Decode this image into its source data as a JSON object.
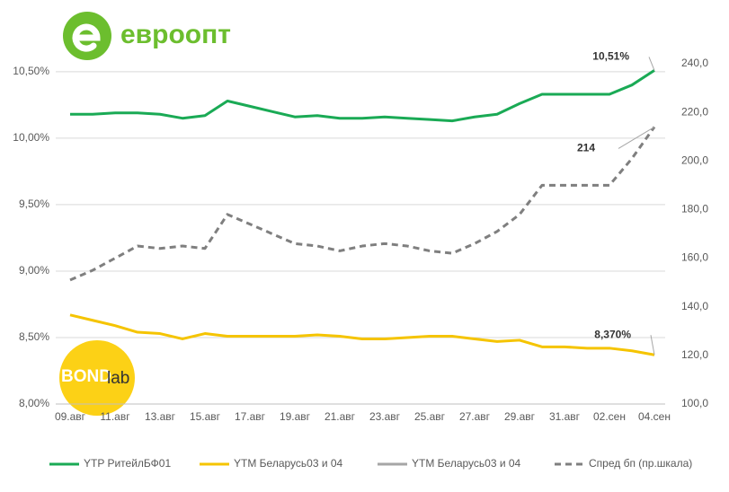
{
  "logos": {
    "brand": "евроопт",
    "watermark_bold": "BOND",
    "watermark_light": "lab"
  },
  "chart_data": {
    "type": "line",
    "categories": [
      "09.авг",
      null,
      "11.авг",
      null,
      "13.авг",
      null,
      "15.авг",
      null,
      "17.авг",
      null,
      "19.авг",
      null,
      "21.авг",
      null,
      "23.авг",
      null,
      "25.авг",
      null,
      "27.авг",
      null,
      "29.авг",
      null,
      "31.авг",
      null,
      "02.сен",
      null,
      "04.сен"
    ],
    "ylim": [
      8,
      10.56
    ],
    "yticks": [
      {
        "value": 8,
        "label": "8,00%"
      },
      {
        "value": 8.5,
        "label": "8,50%"
      },
      {
        "value": 9,
        "label": "9,00%"
      },
      {
        "value": 9.5,
        "label": "9,50%"
      },
      {
        "value": 10,
        "label": "10,00%"
      },
      {
        "value": 10.5,
        "label": "10,50%"
      }
    ],
    "y2lim": [
      100,
      240
    ],
    "y2ticks": [
      {
        "value": 100,
        "label": "100,0"
      },
      {
        "value": 120,
        "label": "120,0"
      },
      {
        "value": 140,
        "label": "140,0"
      },
      {
        "value": 160,
        "label": "160,0"
      },
      {
        "value": 180,
        "label": "180,0"
      },
      {
        "value": 200,
        "label": "200,0"
      },
      {
        "value": 220,
        "label": "220,0"
      },
      {
        "value": 240,
        "label": "240,0"
      }
    ],
    "grid": true,
    "legend": "bottom",
    "series": [
      {
        "name": "YTP РитейлБФ01",
        "color": "#1aaa55",
        "style": "solid",
        "values": [
          10.18,
          10.18,
          10.19,
          10.19,
          10.18,
          10.15,
          10.17,
          10.28,
          10.24,
          10.2,
          10.16,
          10.17,
          10.15,
          10.15,
          10.16,
          10.15,
          10.14,
          10.13,
          10.16,
          10.18,
          10.26,
          10.33,
          10.33,
          10.33,
          10.33,
          10.4,
          10.51
        ],
        "value_labels": [
          null,
          null,
          null,
          null,
          null,
          null,
          null,
          null,
          null,
          null,
          null,
          null,
          null,
          null,
          null,
          null,
          null,
          null,
          null,
          null,
          null,
          null,
          null,
          null,
          null,
          null,
          "10,51%"
        ]
      },
      {
        "name": "YTM Беларусь03 и 04",
        "color": "#f5c400",
        "style": "solid",
        "values": [
          8.67,
          8.63,
          8.59,
          8.54,
          8.53,
          8.49,
          8.53,
          8.51,
          8.51,
          8.51,
          8.51,
          8.52,
          8.51,
          8.49,
          8.49,
          8.5,
          8.51,
          8.51,
          8.49,
          8.47,
          8.48,
          8.43,
          8.43,
          8.42,
          8.42,
          8.4,
          8.37
        ],
        "value_labels": [
          null,
          null,
          null,
          null,
          null,
          null,
          null,
          null,
          null,
          null,
          null,
          null,
          null,
          null,
          null,
          null,
          null,
          null,
          null,
          null,
          null,
          null,
          null,
          null,
          null,
          null,
          "8,370%"
        ]
      },
      {
        "name": "YTM Беларусь03 и 04",
        "color": "#a6a6a6",
        "style": "solid",
        "values": [
          null,
          null,
          null,
          null,
          null,
          null,
          null,
          null,
          null,
          null,
          null,
          null,
          null,
          null,
          null,
          null,
          null,
          null,
          null,
          null,
          null,
          null,
          null,
          null,
          null,
          null,
          null
        ]
      },
      {
        "name": "Спред бп (пр.шкала)",
        "color": "#7f7f7f",
        "style": "dashed",
        "axis": "y2",
        "values": [
          151,
          155,
          160,
          165,
          164,
          165,
          164,
          178,
          174,
          170,
          166,
          165,
          163,
          165,
          166,
          165,
          163,
          162,
          166,
          171,
          178,
          190,
          190,
          190,
          190,
          201,
          214
        ],
        "value_labels": [
          null,
          null,
          null,
          null,
          null,
          null,
          null,
          null,
          null,
          null,
          null,
          null,
          null,
          null,
          null,
          null,
          null,
          null,
          null,
          null,
          null,
          null,
          null,
          null,
          null,
          null,
          "214"
        ]
      }
    ]
  }
}
